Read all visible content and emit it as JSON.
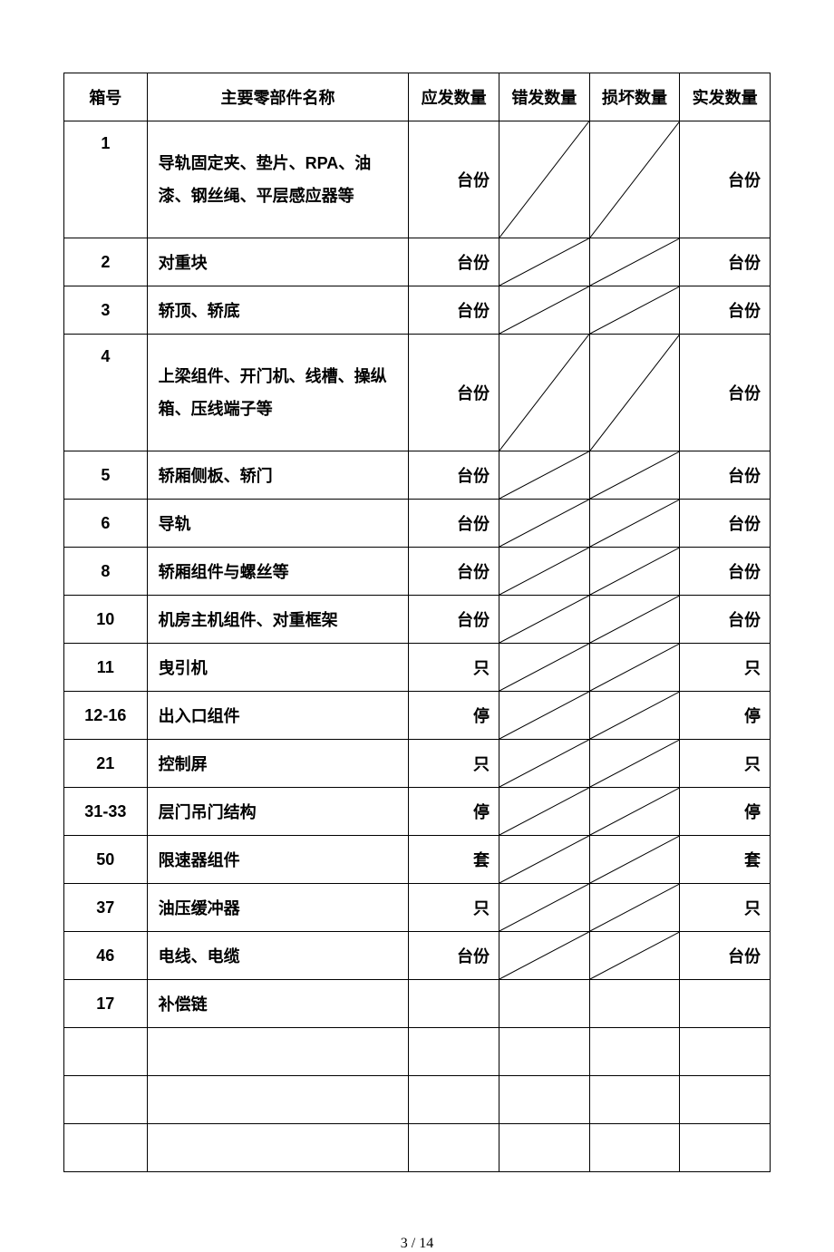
{
  "table": {
    "headers": [
      "箱号",
      "主要零部件名称",
      "应发数量",
      "错发数量",
      "损坏数量",
      "实发数量"
    ],
    "rows": [
      {
        "box": "1",
        "name": "导轨固定夹、垫片、RPA、油漆、钢丝绳、平层感应器等",
        "qty_unit": "台份",
        "act_unit": "台份",
        "diag": true,
        "tall": true
      },
      {
        "box": "2",
        "name": "对重块",
        "qty_unit": "台份",
        "act_unit": "台份",
        "diag": true,
        "tall": false
      },
      {
        "box": "3",
        "name": "轿顶、轿底",
        "qty_unit": "台份",
        "act_unit": "台份",
        "diag": true,
        "tall": false
      },
      {
        "box": "4",
        "name": "上梁组件、开门机、线槽、操纵箱、压线端子等",
        "qty_unit": "台份",
        "act_unit": "台份",
        "diag": true,
        "tall": true
      },
      {
        "box": "5",
        "name": "轿厢侧板、轿门",
        "qty_unit": "台份",
        "act_unit": "台份",
        "diag": true,
        "tall": false
      },
      {
        "box": "6",
        "name": "导轨",
        "qty_unit": "台份",
        "act_unit": "台份",
        "diag": true,
        "tall": false
      },
      {
        "box": "8",
        "name": "轿厢组件与螺丝等",
        "qty_unit": "台份",
        "act_unit": "台份",
        "diag": true,
        "tall": false
      },
      {
        "box": "10",
        "name": "机房主机组件、对重框架",
        "qty_unit": "台份",
        "act_unit": "台份",
        "diag": true,
        "tall": false
      },
      {
        "box": "11",
        "name": "曳引机",
        "qty_unit": "只",
        "act_unit": "只",
        "diag": true,
        "tall": false
      },
      {
        "box": "12-16",
        "name": "出入口组件",
        "qty_unit": "停",
        "act_unit": "停",
        "diag": true,
        "tall": false
      },
      {
        "box": "21",
        "name": "控制屏",
        "qty_unit": "只",
        "act_unit": "只",
        "diag": true,
        "tall": false
      },
      {
        "box": "31-33",
        "name": "层门吊门结构",
        "qty_unit": "停",
        "act_unit": "停",
        "diag": true,
        "tall": false
      },
      {
        "box": "50",
        "name": "限速器组件",
        "qty_unit": "套",
        "act_unit": "套",
        "diag": true,
        "tall": false
      },
      {
        "box": "37",
        "name": "油压缓冲器",
        "qty_unit": "只",
        "act_unit": "只",
        "diag": true,
        "tall": false
      },
      {
        "box": "46",
        "name": "电线、电缆",
        "qty_unit": "台份",
        "act_unit": "台份",
        "diag": true,
        "tall": false
      },
      {
        "box": "17",
        "name": "补偿链",
        "qty_unit": "",
        "act_unit": "",
        "diag": false,
        "tall": false
      },
      {
        "box": "",
        "name": "",
        "qty_unit": "",
        "act_unit": "",
        "diag": false,
        "tall": false
      },
      {
        "box": "",
        "name": "",
        "qty_unit": "",
        "act_unit": "",
        "diag": false,
        "tall": false
      },
      {
        "box": "",
        "name": "",
        "qty_unit": "",
        "act_unit": "",
        "diag": false,
        "tall": false
      }
    ]
  },
  "footer": "3  / 14"
}
